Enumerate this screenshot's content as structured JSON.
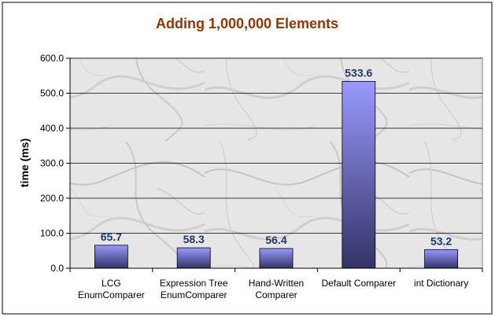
{
  "chart_data": {
    "type": "bar",
    "title": "Adding 1,000,000 Elements",
    "xlabel": "",
    "ylabel": "time (ms)",
    "ylim": [
      0,
      600
    ],
    "yticks": [
      "0.0",
      "100.0",
      "200.0",
      "300.0",
      "400.0",
      "500.0",
      "600.0"
    ],
    "categories": [
      [
        "LCG",
        "EnumComparer"
      ],
      [
        "Expression Tree",
        "EnumComparer"
      ],
      [
        "Hand-Written",
        "Comparer"
      ],
      [
        "Default Comparer"
      ],
      [
        "int Dictionary"
      ]
    ],
    "values": [
      65.7,
      58.3,
      56.4,
      533.6,
      53.2
    ],
    "value_labels": [
      "65.7",
      "58.3",
      "56.4",
      "533.6",
      "53.2"
    ],
    "grid": true,
    "legend": "none",
    "colors": {
      "title": "#993300",
      "value_label": "#1f3864",
      "bar_top": "#9999ff",
      "bar_bottom": "#333366",
      "gridline": "#000000",
      "plot_bg": "#e4e4e4",
      "frame": "#000000"
    }
  }
}
